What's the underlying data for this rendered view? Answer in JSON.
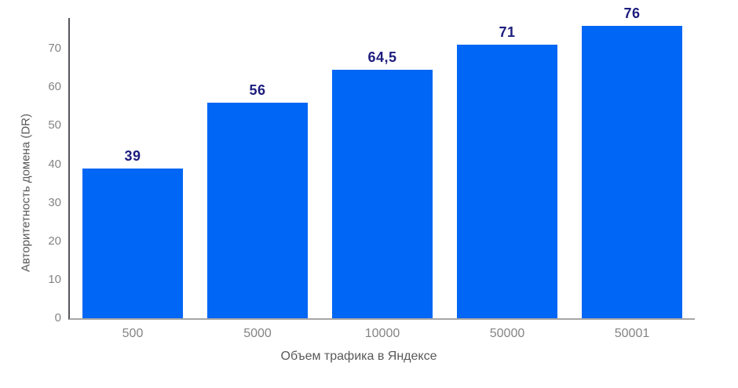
{
  "chart_data": {
    "type": "bar",
    "title": "",
    "xlabel": "Объем трафика в Яндексе",
    "ylabel": "Авторитетность домена (DR)",
    "categories": [
      "500",
      "5000",
      "10000",
      "50000",
      "50001"
    ],
    "values": [
      39,
      56,
      64.5,
      71,
      76
    ],
    "value_labels": [
      "39",
      "56",
      "64,5",
      "71",
      "76"
    ],
    "yticks": [
      0,
      10,
      20,
      30,
      40,
      50,
      60,
      70
    ],
    "ylim": [
      0,
      78
    ],
    "grid": false,
    "legend_position": "none",
    "colors": {
      "bar": "#0066f5",
      "value_label": "#1d1d7e",
      "tick_label": "#848484",
      "axis_title": "#595959",
      "y_axis_line": "#55565c",
      "x_axis_line": "#a6a6a6"
    }
  }
}
